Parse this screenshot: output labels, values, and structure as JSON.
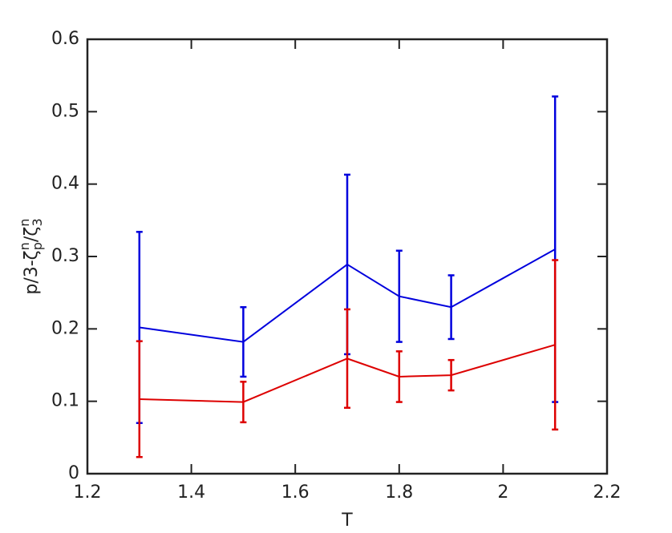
{
  "chart_data": {
    "type": "errorbar_line",
    "xlabel": "T",
    "ylabel": [
      "p/3-ζ",
      "n",
      "p",
      "/ζ",
      "n",
      "3"
    ],
    "ylabel_styles": [
      "normal",
      "sup",
      "sub",
      "normal",
      "sup",
      "sub"
    ],
    "x": [
      1.3,
      1.5,
      1.7,
      1.8,
      1.9,
      2.1
    ],
    "series": [
      {
        "color": "#0000dd",
        "values": [
          0.202,
          0.182,
          0.289,
          0.245,
          0.23,
          0.31
        ],
        "errors": [
          0.132,
          0.048,
          0.124,
          0.063,
          0.044,
          0.211
        ]
      },
      {
        "color": "#dd0000",
        "values": [
          0.103,
          0.099,
          0.159,
          0.134,
          0.136,
          0.178
        ],
        "errors": [
          0.08,
          0.028,
          0.068,
          0.035,
          0.021,
          0.117
        ]
      }
    ],
    "xlim": [
      1.2,
      2.2
    ],
    "xticks": [
      1.2,
      1.4,
      1.6,
      1.8,
      2,
      2.2
    ],
    "ylim": [
      0,
      0.6
    ],
    "yticks": [
      0,
      0.1,
      0.2,
      0.3,
      0.4,
      0.5,
      0.6
    ],
    "grid": false
  }
}
